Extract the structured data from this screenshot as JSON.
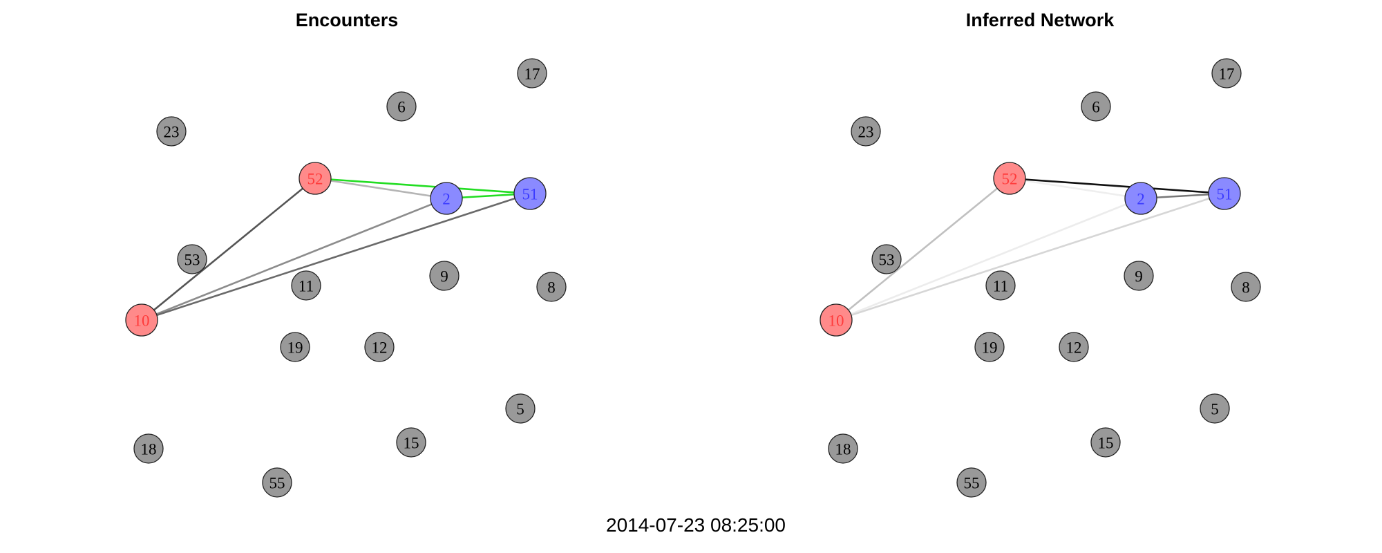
{
  "timestamp": "2014-07-23 08:25:00",
  "colors": {
    "default_node": "#999999",
    "red_node": "#ff8a8a",
    "blue_node": "#8a8aff",
    "red_label": "#ff3b3b",
    "blue_label": "#3b3bff",
    "default_label": "#000000"
  },
  "panels": [
    {
      "title": "Encounters",
      "nodes": [
        {
          "id": "17",
          "group": "default"
        },
        {
          "id": "6",
          "group": "default"
        },
        {
          "id": "23",
          "group": "default"
        },
        {
          "id": "52",
          "group": "red"
        },
        {
          "id": "2",
          "group": "blue"
        },
        {
          "id": "51",
          "group": "blue"
        },
        {
          "id": "53",
          "group": "default"
        },
        {
          "id": "11",
          "group": "default"
        },
        {
          "id": "9",
          "group": "default"
        },
        {
          "id": "8",
          "group": "default"
        },
        {
          "id": "10",
          "group": "red"
        },
        {
          "id": "19",
          "group": "default"
        },
        {
          "id": "12",
          "group": "default"
        },
        {
          "id": "5",
          "group": "default"
        },
        {
          "id": "18",
          "group": "default"
        },
        {
          "id": "15",
          "group": "default"
        },
        {
          "id": "55",
          "group": "default"
        }
      ],
      "edges": [
        {
          "source": "52",
          "target": "2",
          "color": "#b5b5b5"
        },
        {
          "source": "52",
          "target": "51",
          "color": "#22dd22"
        },
        {
          "source": "2",
          "target": "51",
          "color": "#22dd22"
        },
        {
          "source": "10",
          "target": "52",
          "color": "#555555"
        },
        {
          "source": "10",
          "target": "2",
          "color": "#8c8c8c"
        },
        {
          "source": "10",
          "target": "51",
          "color": "#6a6a6a"
        }
      ]
    },
    {
      "title": "Inferred Network",
      "nodes": [
        {
          "id": "17",
          "group": "default"
        },
        {
          "id": "6",
          "group": "default"
        },
        {
          "id": "23",
          "group": "default"
        },
        {
          "id": "52",
          "group": "red"
        },
        {
          "id": "2",
          "group": "blue"
        },
        {
          "id": "51",
          "group": "blue"
        },
        {
          "id": "53",
          "group": "default"
        },
        {
          "id": "11",
          "group": "default"
        },
        {
          "id": "9",
          "group": "default"
        },
        {
          "id": "8",
          "group": "default"
        },
        {
          "id": "10",
          "group": "red"
        },
        {
          "id": "19",
          "group": "default"
        },
        {
          "id": "12",
          "group": "default"
        },
        {
          "id": "5",
          "group": "default"
        },
        {
          "id": "18",
          "group": "default"
        },
        {
          "id": "15",
          "group": "default"
        },
        {
          "id": "55",
          "group": "default"
        }
      ],
      "edges": [
        {
          "source": "52",
          "target": "2",
          "color": "#eeeeee"
        },
        {
          "source": "52",
          "target": "51",
          "color": "#111111"
        },
        {
          "source": "2",
          "target": "51",
          "color": "#777777"
        },
        {
          "source": "10",
          "target": "52",
          "color": "#c0c0c0"
        },
        {
          "source": "10",
          "target": "2",
          "color": "#ececec"
        },
        {
          "source": "10",
          "target": "51",
          "color": "#d6d6d6"
        }
      ]
    }
  ]
}
